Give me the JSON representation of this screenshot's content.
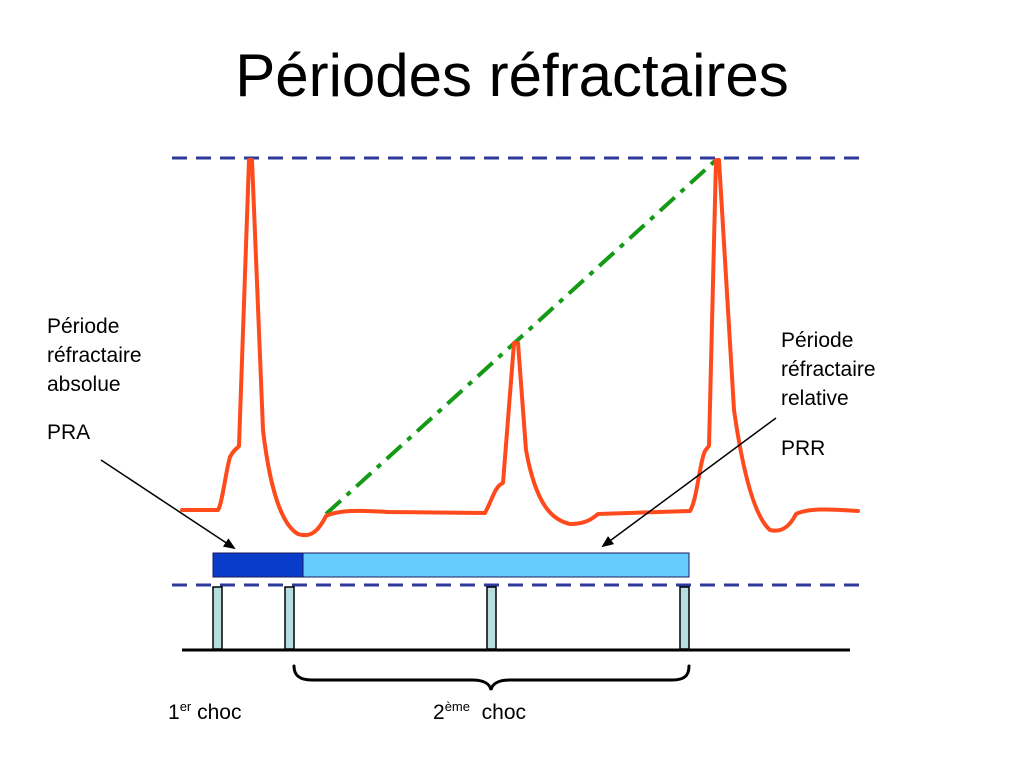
{
  "title": "Périodes réfractaires",
  "left_label": {
    "lines": [
      "Période",
      "réfractaire",
      "absolue"
    ],
    "abbr": "PRA"
  },
  "right_label": {
    "lines": [
      "Période",
      "réfractaire",
      "relative"
    ],
    "abbr": "PRR"
  },
  "shocks": {
    "first": {
      "number": "1",
      "suffix": "er",
      "word": "choc"
    },
    "second": {
      "number": "2",
      "suffix": "ème",
      "word": "choc"
    }
  },
  "colors": {
    "action_potential": "#ff4a1c",
    "threshold_dashed": "#2e3a9a",
    "extrapolation_dashdot": "#159a15",
    "absolute_period": "#0a3ccc",
    "relative_period": "#66ccff",
    "stimulus_marker": "#b7dede",
    "axis": "#000000"
  }
}
